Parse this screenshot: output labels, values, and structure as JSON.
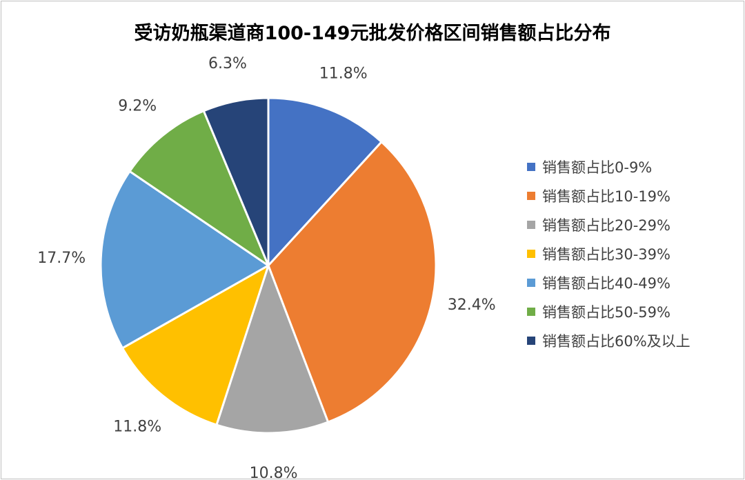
{
  "chart_data": {
    "type": "pie",
    "title": "受访奶瓶渠道商100-149元批发价格区间销售额占比分布",
    "categories": [
      "销售额占比0-9%",
      "销售额占比10-19%",
      "销售额占比20-29%",
      "销售额占比30-39%",
      "销售额占比40-49%",
      "销售额占比50-59%",
      "销售额占比60%及以上"
    ],
    "values": [
      11.8,
      32.4,
      10.8,
      11.8,
      17.7,
      9.2,
      6.3
    ],
    "labels": [
      "11.8%",
      "32.4%",
      "10.8%",
      "11.8%",
      "17.7%",
      "9.2%",
      "6.3%"
    ],
    "colors": [
      "#4472C4",
      "#ED7D31",
      "#A5A5A5",
      "#FFC000",
      "#5B9BD5",
      "#70AD47",
      "#264478"
    ],
    "legend_position": "right"
  }
}
